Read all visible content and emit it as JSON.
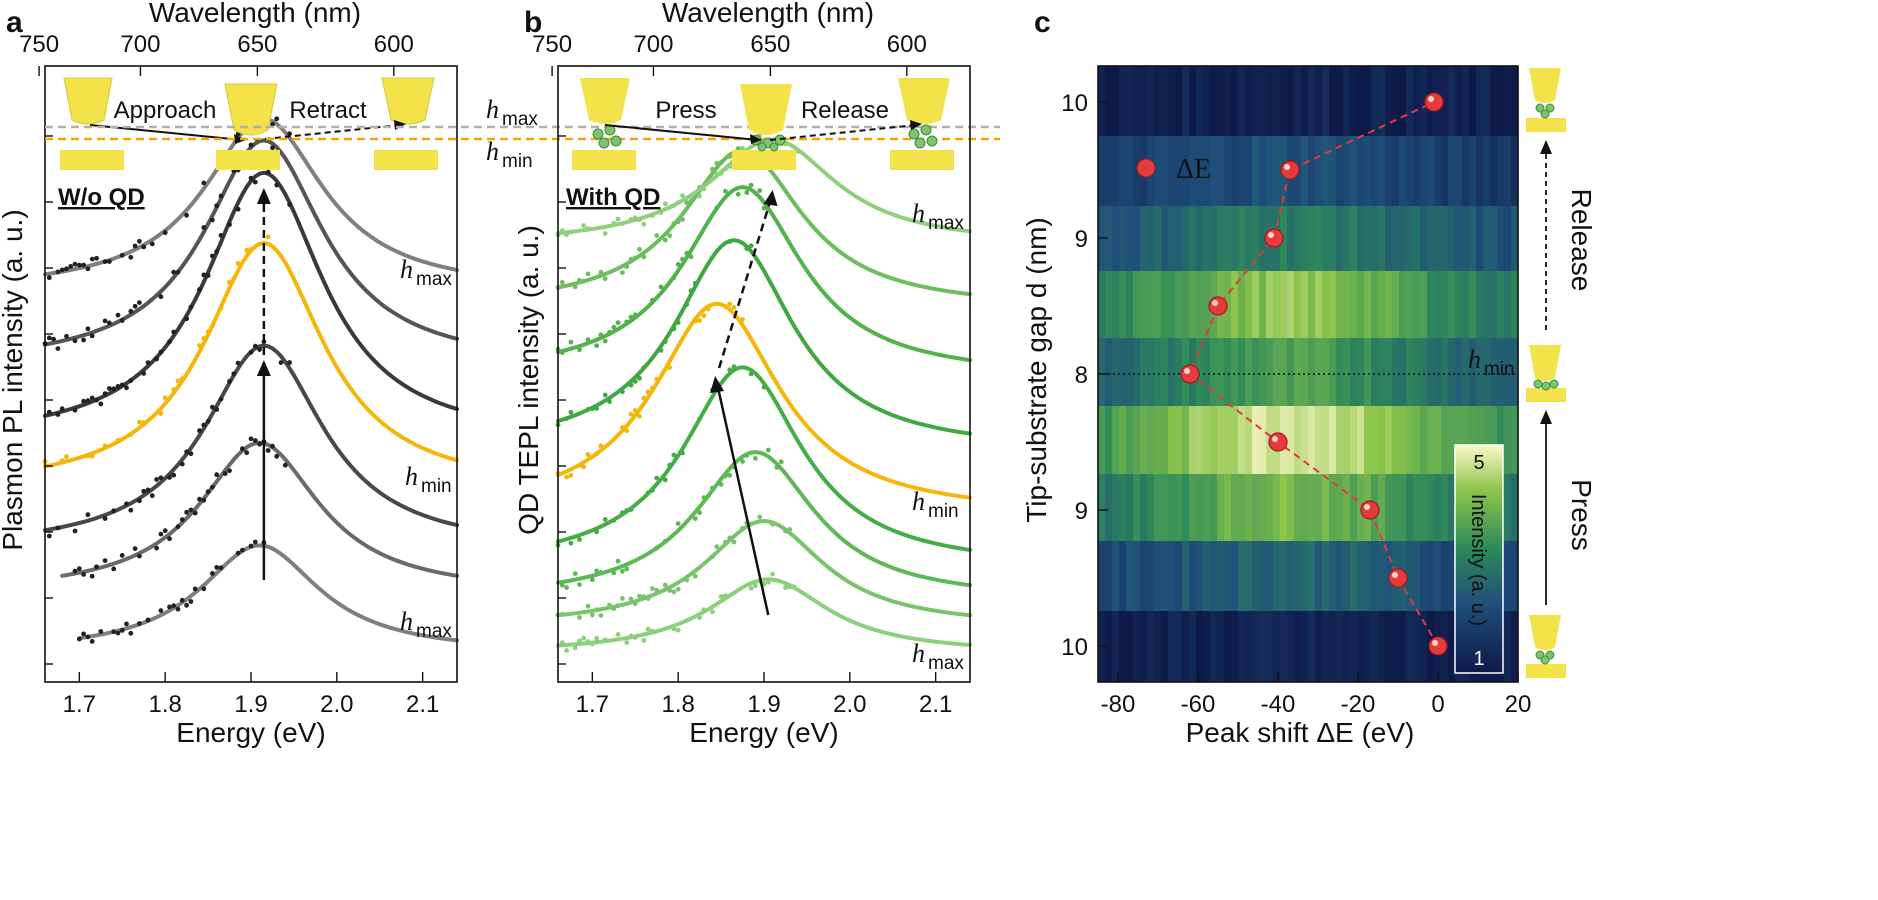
{
  "panels": [
    {
      "id": "a",
      "letter": "a",
      "top_axis_label": "Wavelength (nm)",
      "top_ticks": [
        "750",
        "700",
        "650",
        "600"
      ],
      "top_tick_values_nm": [
        750,
        700,
        650,
        600
      ],
      "x_label": "Energy (eV)",
      "x_ticks": [
        "1.7",
        "1.8",
        "1.9",
        "2.0",
        "2.1"
      ],
      "x_tick_values": [
        1.7,
        1.8,
        1.9,
        2.0,
        2.1
      ],
      "xlim": [
        1.66,
        2.14
      ],
      "y_label": "Plasmon PL intensity (a. u.)",
      "title": "W/o QD",
      "process_labels": [
        "Approach",
        "Retract"
      ],
      "curve_label_top": "max",
      "curve_label_mid": "min",
      "curve_label_bottom": "max"
    },
    {
      "id": "b",
      "letter": "b",
      "top_axis_label": "Wavelength (nm)",
      "top_ticks": [
        "750",
        "700",
        "650",
        "600"
      ],
      "top_tick_values_nm": [
        750,
        700,
        650,
        600
      ],
      "x_label": "Energy (eV)",
      "x_ticks": [
        "1.7",
        "1.8",
        "1.9",
        "2.0",
        "2.1"
      ],
      "x_tick_values": [
        1.7,
        1.8,
        1.9,
        2.0,
        2.1
      ],
      "xlim": [
        1.66,
        2.14
      ],
      "y_label": "QD TEPL intensity (a. u.)",
      "title": "With QD",
      "process_labels": [
        "Press",
        "Release"
      ],
      "curve_label_top": "max",
      "curve_label_mid": "min",
      "curve_label_bottom": "max"
    },
    {
      "id": "c",
      "letter": "c",
      "x_label": "Peak shift ΔE (eV)",
      "x_ticks": [
        "-80",
        "-60",
        "-40",
        "-20",
        "0",
        "20"
      ],
      "x_tick_values": [
        -80,
        -60,
        -40,
        -20,
        0,
        20
      ],
      "xlim": [
        -85,
        20
      ],
      "y_label": "Tip-substrate gap d (nm)",
      "y_ticks": [
        "10",
        "9",
        "8",
        "9",
        "10"
      ],
      "legend_text": "ΔE",
      "hmin_label": "min",
      "side_labels": [
        "Release",
        "Press"
      ],
      "colorbar_label": "Intensity (a. u.)",
      "colorbar_ticks": [
        "5",
        "1"
      ],
      "colorbar_range": [
        1,
        5
      ]
    }
  ],
  "symbols": {
    "h": "h",
    "d": "d"
  },
  "chart_data": [
    {
      "panel": "a",
      "type": "line",
      "description_axis": "Energy (eV)",
      "series": [
        {
          "peak": 1.91,
          "width": 0.085,
          "amp": 1.0,
          "offset": 0.0,
          "color": "#7f7f7f",
          "x_start": 1.7
        },
        {
          "peak": 1.91,
          "width": 0.085,
          "amp": 1.4,
          "offset": 0.55,
          "color": "#6a6a6a",
          "x_start": 1.68
        },
        {
          "peak": 1.915,
          "width": 0.085,
          "amp": 1.9,
          "offset": 0.95,
          "color": "#484848",
          "x_start": 1.66
        },
        {
          "peak": 1.915,
          "width": 0.085,
          "amp": 2.3,
          "offset": 1.5,
          "color": "#f5b60a",
          "x_start": 1.66
        },
        {
          "peak": 1.915,
          "width": 0.085,
          "amp": 2.5,
          "offset": 1.95,
          "color": "#3a3a3a",
          "x_start": 1.66
        },
        {
          "peak": 1.915,
          "width": 0.085,
          "amp": 2.1,
          "offset": 2.65,
          "color": "#555555",
          "x_start": 1.66
        },
        {
          "peak": 1.915,
          "width": 0.085,
          "amp": 1.6,
          "offset": 3.35,
          "color": "#7f7f7f",
          "x_start": 1.66
        }
      ]
    },
    {
      "panel": "b",
      "type": "line",
      "description_axis": "Energy (eV)",
      "series": [
        {
          "peak": 1.905,
          "width": 0.085,
          "amp": 0.7,
          "offset": 0.0,
          "color": "#8ccf7c",
          "x_start": 1.66
        },
        {
          "peak": 1.9,
          "width": 0.085,
          "amp": 1.0,
          "offset": 0.25,
          "color": "#78c46a",
          "x_start": 1.66
        },
        {
          "peak": 1.89,
          "width": 0.085,
          "amp": 1.4,
          "offset": 0.5,
          "color": "#5db855",
          "x_start": 1.66
        },
        {
          "peak": 1.875,
          "width": 0.085,
          "amp": 1.9,
          "offset": 0.8,
          "color": "#44ad45",
          "x_start": 1.66
        },
        {
          "peak": 1.845,
          "width": 0.09,
          "amp": 2.0,
          "offset": 1.3,
          "color": "#f5b60a",
          "x_start": 1.66
        },
        {
          "peak": 1.865,
          "width": 0.085,
          "amp": 2.0,
          "offset": 1.9,
          "color": "#3fa843",
          "x_start": 1.66
        },
        {
          "peak": 1.875,
          "width": 0.085,
          "amp": 1.8,
          "offset": 2.6,
          "color": "#52b24c",
          "x_start": 1.66
        },
        {
          "peak": 1.875,
          "width": 0.085,
          "amp": 1.5,
          "offset": 3.25,
          "color": "#6cbe5e",
          "x_start": 1.66
        },
        {
          "peak": 1.91,
          "width": 0.09,
          "amp": 1.0,
          "offset": 3.85,
          "color": "#8fd07f",
          "x_start": 1.66
        }
      ]
    },
    {
      "panel": "c",
      "type": "heatmap+scatter",
      "x_axis": "Peak shift ΔE (eV)",
      "y_axis": "Tip-substrate gap d (nm)",
      "band_intensity": [
        1.2,
        2.6,
        4.0,
        4.8,
        3.5,
        4.2,
        3.0,
        2.2,
        1.2
      ],
      "points": [
        {
          "x": 0,
          "step": 0
        },
        {
          "x": -10,
          "step": 0.5
        },
        {
          "x": -17,
          "step": 1
        },
        {
          "x": -40,
          "step": 1.5
        },
        {
          "x": -62,
          "step": 2
        },
        {
          "x": -55,
          "step": 2.5
        },
        {
          "x": -41,
          "step": 3
        },
        {
          "x": -37,
          "step": 3.5
        },
        {
          "x": -1,
          "step": 4
        }
      ],
      "legend_point_x": -73
    }
  ]
}
